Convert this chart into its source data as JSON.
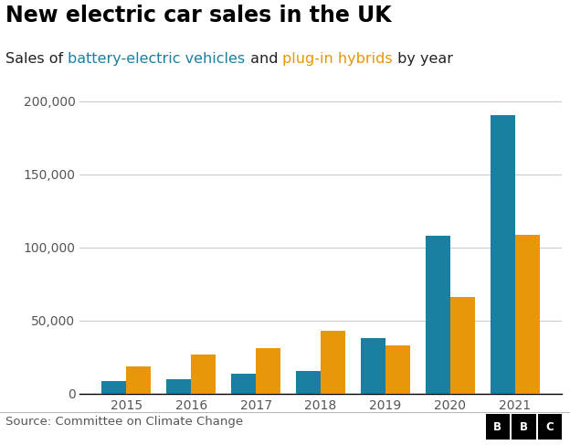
{
  "title": "New electric car sales in the UK",
  "subtitle_parts": [
    {
      "text": "Sales of ",
      "color": "#222222"
    },
    {
      "text": "battery-electric vehicles",
      "color": "#1a7fa0"
    },
    {
      "text": " and ",
      "color": "#222222"
    },
    {
      "text": "plug-in hybrids",
      "color": "#e8960a"
    },
    {
      "text": " by year",
      "color": "#222222"
    }
  ],
  "years": [
    2015,
    2016,
    2017,
    2018,
    2019,
    2020,
    2021
  ],
  "bev": [
    9049,
    10000,
    13597,
    15510,
    37850,
    108205,
    190727
  ],
  "phev": [
    18445,
    27000,
    31000,
    43000,
    33000,
    66000,
    109000
  ],
  "bev_color": "#1a7fa0",
  "phev_color": "#e8960a",
  "ylim": [
    0,
    210000
  ],
  "yticks": [
    0,
    50000,
    100000,
    150000,
    200000
  ],
  "ytick_labels": [
    "0",
    "50,000",
    "100,000",
    "150,000",
    "200,000"
  ],
  "source_text": "Source: Committee on Climate Change",
  "background_color": "#ffffff",
  "bar_width": 0.38,
  "title_fontsize": 17,
  "subtitle_fontsize": 11.5,
  "tick_fontsize": 10,
  "source_fontsize": 9.5
}
